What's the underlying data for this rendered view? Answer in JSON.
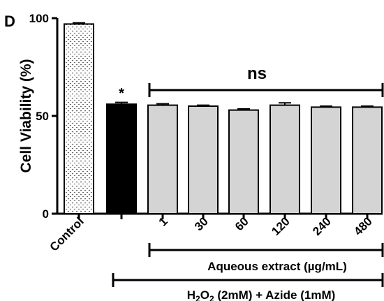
{
  "chart_data": {
    "type": "bar",
    "panel_label": "D",
    "ylabel": "Cell Viability (%)",
    "ylim": [
      0,
      100
    ],
    "yticks": [
      0,
      50,
      100
    ],
    "categories": [
      "Control",
      "",
      "1",
      "30",
      "60",
      "120",
      "240",
      "480"
    ],
    "values": [
      97,
      56,
      55.5,
      55,
      53,
      55.5,
      54.5,
      54.5
    ],
    "errors": [
      0.6,
      0.9,
      0.7,
      0.5,
      0.6,
      1.2,
      0.5,
      0.5
    ],
    "bar_styles": [
      "dotted",
      "black",
      "gray",
      "gray",
      "gray",
      "gray",
      "gray",
      "gray"
    ],
    "annotations": {
      "significance_star": "*",
      "ns_label": "ns"
    },
    "group_labels": {
      "extract": "Aqueous extract (µg/mL)",
      "h2o2_main": "H",
      "h2o2_sub": "2",
      "o2_main": "O",
      "o2_sub": "2",
      "treatment_rest": " (2mM) + Azide (1mM)"
    },
    "colors": {
      "black_bar": "#000000",
      "gray_bar": "#d4d4d4",
      "dotted_bg": "#ffffff",
      "dot": "#444444"
    }
  }
}
